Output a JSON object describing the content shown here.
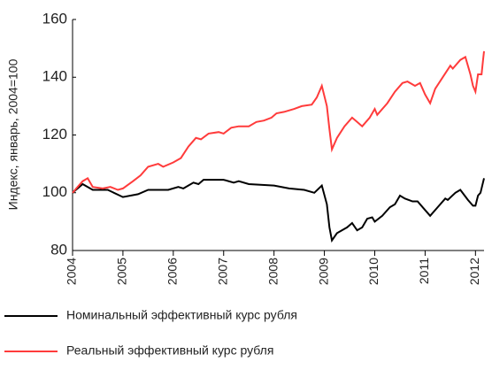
{
  "chart_data": {
    "type": "line",
    "y_label": "Индекс, январь, 2004=100",
    "xlim": [
      2004,
      2012.17
    ],
    "xticks": [
      2004,
      2005,
      2006,
      2007,
      2008,
      2009,
      2010,
      2011,
      2012
    ],
    "ylim": [
      80,
      160
    ],
    "yticks": [
      80,
      100,
      120,
      140,
      160
    ],
    "series": [
      {
        "name": "Номинальный эффективный курс рубля",
        "color": "#000000",
        "x": [
          2004,
          2004.2,
          2004.4,
          2004.7,
          2005.0,
          2005.3,
          2005.5,
          2005.9,
          2006.1,
          2006.2,
          2006.4,
          2006.5,
          2006.6,
          2007.0,
          2007.2,
          2007.3,
          2007.5,
          2008.0,
          2008.3,
          2008.6,
          2008.8,
          2008.95,
          2009.05,
          2009.1,
          2009.15,
          2009.25,
          2009.45,
          2009.55,
          2009.65,
          2009.75,
          2009.85,
          2009.95,
          2010.0,
          2010.15,
          2010.3,
          2010.4,
          2010.5,
          2010.6,
          2010.75,
          2010.85,
          2011.0,
          2011.1,
          2011.25,
          2011.4,
          2011.45,
          2011.6,
          2011.7,
          2011.85,
          2011.95,
          2012.0,
          2012.05,
          2012.1,
          2012.17
        ],
        "values": [
          100,
          103,
          101,
          101,
          98.5,
          99.5,
          101,
          101,
          102,
          101.5,
          103.5,
          103,
          104.5,
          104.5,
          103.5,
          104,
          103,
          102.5,
          101.5,
          101,
          100,
          102.5,
          96,
          88,
          83.5,
          86,
          88,
          89.5,
          87,
          88,
          91,
          91.5,
          90,
          92,
          95,
          96,
          99,
          98,
          97,
          97,
          94,
          92,
          95,
          98,
          97.5,
          100,
          101,
          97.5,
          95.5,
          95.5,
          99,
          100,
          105
        ]
      },
      {
        "name": "Реальный эффективный курс рубля",
        "color": "#ff3b3b",
        "x": [
          2004,
          2004.2,
          2004.3,
          2004.4,
          2004.6,
          2004.75,
          2004.9,
          2005.0,
          2005.2,
          2005.35,
          2005.5,
          2005.7,
          2005.8,
          2006.0,
          2006.15,
          2006.3,
          2006.45,
          2006.55,
          2006.7,
          2006.9,
          2007.0,
          2007.15,
          2007.3,
          2007.5,
          2007.65,
          2007.8,
          2007.95,
          2008.05,
          2008.2,
          2008.4,
          2008.55,
          2008.75,
          2008.85,
          2008.95,
          2009.05,
          2009.1,
          2009.15,
          2009.25,
          2009.4,
          2009.55,
          2009.65,
          2009.75,
          2009.9,
          2010.0,
          2010.05,
          2010.25,
          2010.4,
          2010.55,
          2010.65,
          2010.8,
          2010.9,
          2011.0,
          2011.1,
          2011.2,
          2011.35,
          2011.5,
          2011.55,
          2011.7,
          2011.8,
          2011.9,
          2011.95,
          2012.0,
          2012.05,
          2012.12,
          2012.15,
          2012.17
        ],
        "values": [
          100,
          104,
          105,
          102,
          101.5,
          102,
          101,
          101.5,
          104,
          106,
          109,
          110,
          109,
          110.5,
          112,
          116,
          119,
          118.5,
          120.5,
          121,
          120.5,
          122.5,
          123,
          123,
          124.5,
          125,
          126,
          127.5,
          128,
          129,
          130,
          130.5,
          133,
          137,
          130,
          122,
          115,
          119,
          123,
          126,
          124.5,
          123,
          126,
          129,
          127,
          131,
          135,
          138,
          138.5,
          137,
          138,
          134,
          131,
          136,
          140,
          144,
          143,
          146,
          147,
          141,
          137,
          135,
          141,
          141,
          146,
          149
        ]
      }
    ]
  }
}
